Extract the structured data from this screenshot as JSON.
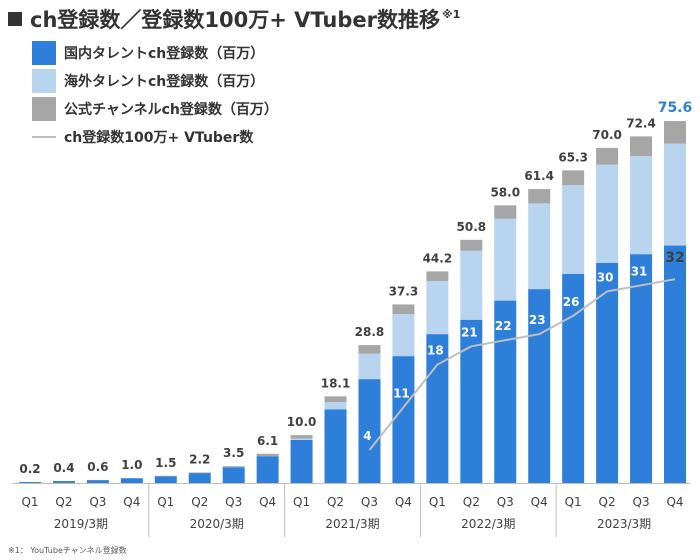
{
  "title": {
    "text": "ch登録数／登録数100万+ VTuber数推移",
    "note": "※1"
  },
  "legend": [
    {
      "label": "国内タレントch登録数（百万）",
      "color": "#2e7fd9",
      "kind": "box"
    },
    {
      "label": "海外タレントch登録数（百万）",
      "color": "#b8d4ef",
      "kind": "box"
    },
    {
      "label": "公式チャンネルch登録数（百万）",
      "color": "#a6a6a6",
      "kind": "box"
    },
    {
      "label": "ch登録数100万+ VTuber数",
      "color": "#bfbfbf",
      "kind": "line"
    }
  ],
  "footnote": "※1： YouTubeチャンネル登録数",
  "colors": {
    "domestic": "#2e7fd9",
    "overseas": "#b8d4ef",
    "official": "#a6a6a6",
    "line": "#bfbfbf",
    "highlight": "#2e7fd9"
  },
  "chart_data": {
    "type": "bar",
    "stacked": true,
    "categories": [
      "Q1",
      "Q2",
      "Q3",
      "Q4",
      "Q1",
      "Q2",
      "Q3",
      "Q4",
      "Q1",
      "Q2",
      "Q3",
      "Q4",
      "Q1",
      "Q2",
      "Q3",
      "Q4",
      "Q1",
      "Q2",
      "Q3",
      "Q4"
    ],
    "groups": [
      {
        "label": "2019/3期",
        "start": 0,
        "end": 3
      },
      {
        "label": "2020/3期",
        "start": 4,
        "end": 7
      },
      {
        "label": "2021/3期",
        "start": 8,
        "end": 11
      },
      {
        "label": "2022/3期",
        "start": 12,
        "end": 15
      },
      {
        "label": "2023/3期",
        "start": 16,
        "end": 19
      }
    ],
    "series": [
      {
        "name": "国内タレントch登録数（百万）",
        "values": [
          0.2,
          0.4,
          0.6,
          1.0,
          1.4,
          2.1,
          3.3,
          5.6,
          9.0,
          15.4,
          21.7,
          26.5,
          31.1,
          34.1,
          38.1,
          40.5,
          43.7,
          46.0,
          47.8,
          49.6
        ]
      },
      {
        "name": "海外タレントch登録数（百万）",
        "values": [
          0,
          0,
          0,
          0,
          0,
          0,
          0,
          0,
          0.3,
          1.5,
          5.3,
          8.8,
          11.1,
          14.4,
          17.1,
          17.9,
          18.5,
          20.5,
          20.5,
          21.3
        ]
      },
      {
        "name": "公式チャンネルch登録数（百万）",
        "values": [
          0,
          0,
          0,
          0,
          0.1,
          0.1,
          0.2,
          0.5,
          0.7,
          1.2,
          1.8,
          2.0,
          2.0,
          2.3,
          2.8,
          3.0,
          3.1,
          3.5,
          4.1,
          4.7
        ]
      }
    ],
    "totals": [
      "0.2",
      "0.4",
      "0.6",
      "1.0",
      "1.5",
      "2.2",
      "3.5",
      "6.1",
      "10.0",
      "18.1",
      "28.8",
      "37.3",
      "44.2",
      "50.8",
      "58.0",
      "61.4",
      "65.3",
      "70.0",
      "72.4",
      "75.6"
    ],
    "line": {
      "name": "ch登録数100万+ VTuber数",
      "start_index": 10,
      "values": [
        4,
        11,
        18,
        21,
        22,
        23,
        26,
        30,
        31,
        32
      ]
    },
    "ylim": [
      0,
      80
    ]
  }
}
